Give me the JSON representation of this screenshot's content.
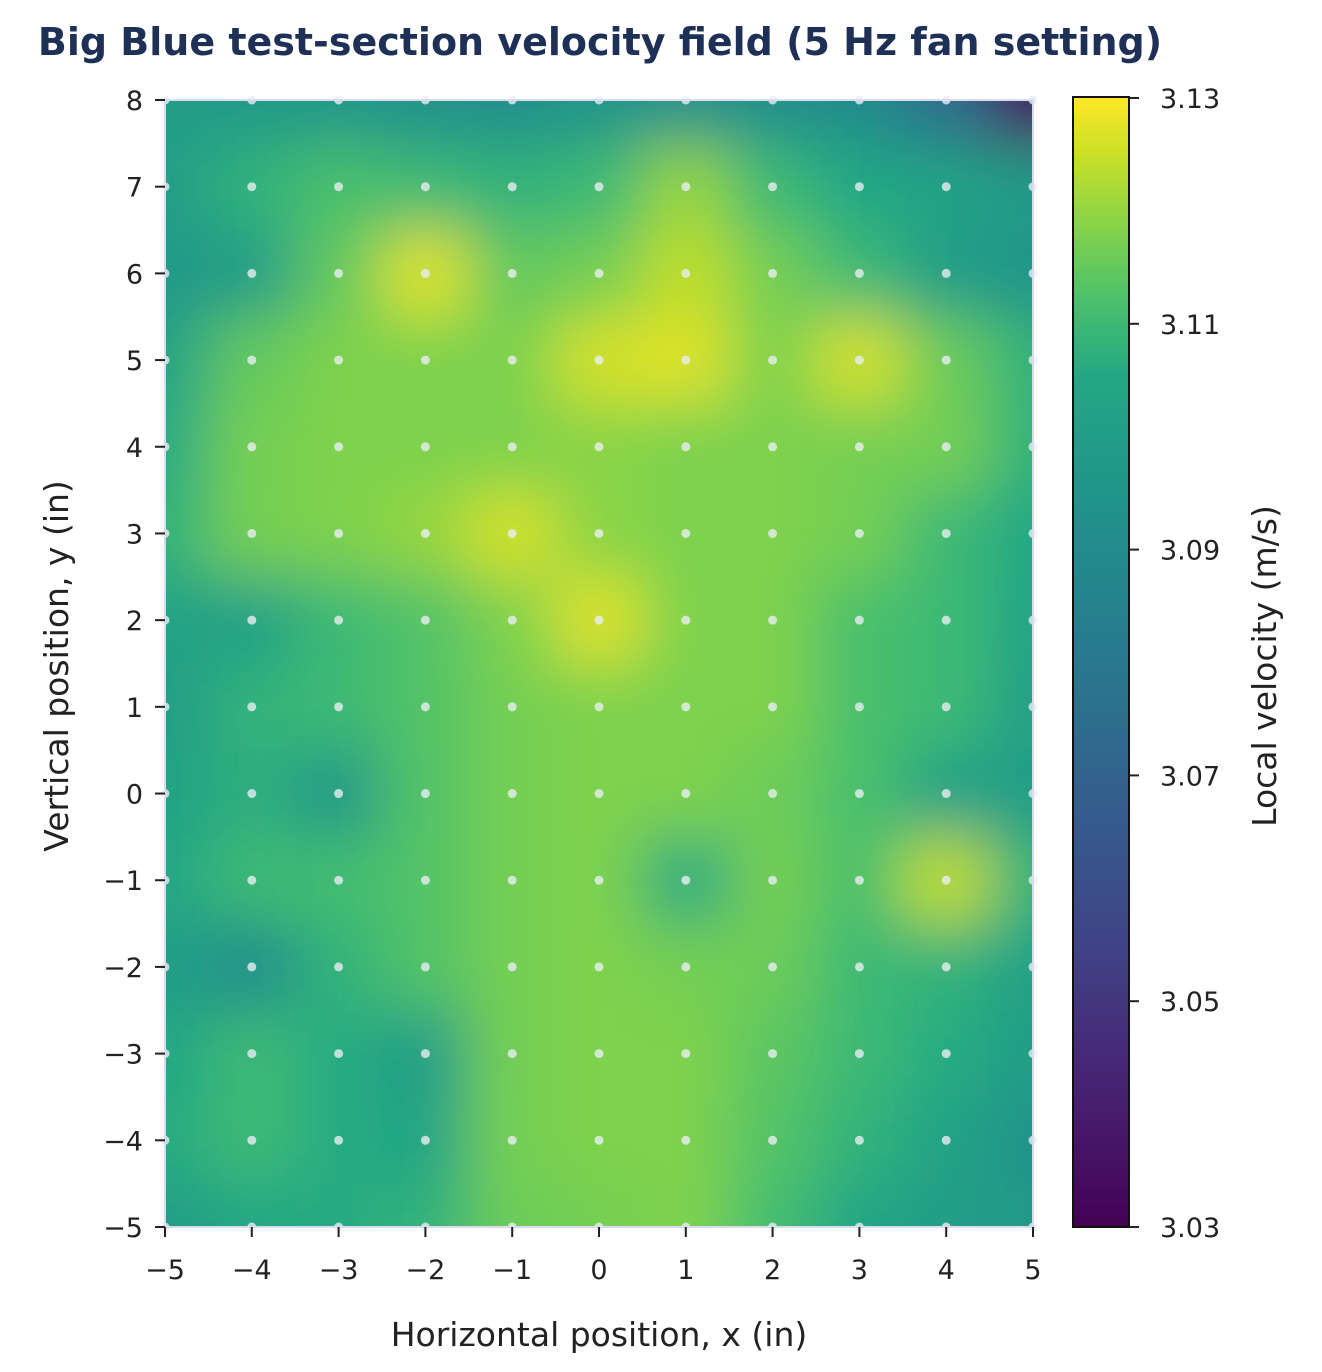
{
  "chart_data": {
    "type": "heatmap",
    "title": "Big Blue test-section velocity field (5 Hz fan setting)",
    "xlabel": "Horizontal position, x (in)",
    "ylabel": "Vertical position, y (in)",
    "colorbar_label": "Local velocity (m/s)",
    "colormap": "viridis",
    "xlim": [
      -5,
      5
    ],
    "ylim": [
      -5,
      8
    ],
    "clim": [
      3.03,
      3.13
    ],
    "x_ticks": [
      "−5",
      "−4",
      "−3",
      "−2",
      "−1",
      "0",
      "1",
      "2",
      "3",
      "4",
      "5"
    ],
    "y_ticks": [
      "8",
      "7",
      "6",
      "5",
      "4",
      "3",
      "2",
      "1",
      "0",
      "−1",
      "−2",
      "−3",
      "−4",
      "−5"
    ],
    "colorbar_ticks": [
      "3.13",
      "3.11",
      "3.09",
      "3.07",
      "3.05",
      "3.03"
    ],
    "x": [
      -5,
      -4,
      -3,
      -2,
      -1,
      0,
      1,
      2,
      3,
      4,
      5
    ],
    "y": [
      8,
      7,
      6,
      5,
      4,
      3,
      2,
      1,
      0,
      -1,
      -2,
      -3,
      -4,
      -5
    ],
    "values": [
      [
        3.1,
        3.098,
        3.097,
        3.093,
        3.092,
        3.095,
        3.093,
        3.092,
        3.09,
        3.075,
        3.035
      ],
      [
        3.1,
        3.108,
        3.112,
        3.11,
        3.108,
        3.11,
        3.12,
        3.11,
        3.105,
        3.103,
        3.098
      ],
      [
        3.098,
        3.1,
        3.115,
        3.127,
        3.115,
        3.117,
        3.124,
        3.117,
        3.11,
        3.1,
        3.095
      ],
      [
        3.103,
        3.115,
        3.118,
        3.118,
        3.118,
        3.126,
        3.127,
        3.118,
        3.126,
        3.116,
        3.108
      ],
      [
        3.106,
        3.117,
        3.118,
        3.118,
        3.118,
        3.119,
        3.118,
        3.118,
        3.117,
        3.117,
        3.108
      ],
      [
        3.108,
        3.117,
        3.118,
        3.12,
        3.126,
        3.119,
        3.118,
        3.118,
        3.117,
        3.11,
        3.105
      ],
      [
        3.103,
        3.102,
        3.11,
        3.113,
        3.118,
        3.127,
        3.118,
        3.118,
        3.112,
        3.11,
        3.104
      ],
      [
        3.1,
        3.108,
        3.11,
        3.113,
        3.117,
        3.118,
        3.118,
        3.118,
        3.112,
        3.11,
        3.102
      ],
      [
        3.103,
        3.107,
        3.098,
        3.113,
        3.117,
        3.118,
        3.118,
        3.116,
        3.112,
        3.102,
        3.1
      ],
      [
        3.105,
        3.11,
        3.111,
        3.113,
        3.117,
        3.118,
        3.106,
        3.117,
        3.112,
        3.124,
        3.108
      ],
      [
        3.1,
        3.092,
        3.108,
        3.113,
        3.117,
        3.118,
        3.117,
        3.116,
        3.11,
        3.108,
        3.102
      ],
      [
        3.105,
        3.11,
        3.106,
        3.1,
        3.117,
        3.118,
        3.118,
        3.114,
        3.11,
        3.106,
        3.1
      ],
      [
        3.106,
        3.11,
        3.106,
        3.104,
        3.117,
        3.118,
        3.118,
        3.113,
        3.108,
        3.103,
        3.094
      ],
      [
        3.1,
        3.105,
        3.106,
        3.108,
        3.116,
        3.117,
        3.118,
        3.111,
        3.104,
        3.1,
        3.098
      ]
    ]
  }
}
